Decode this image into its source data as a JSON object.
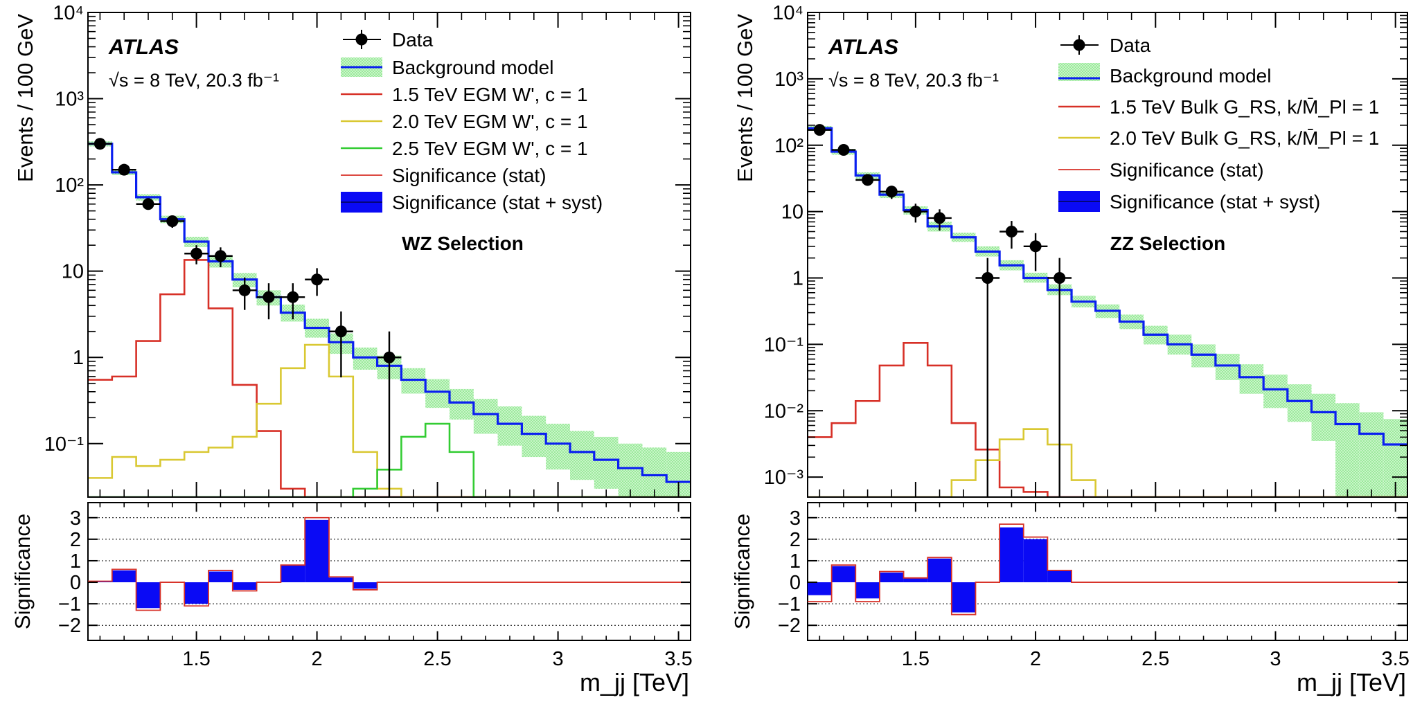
{
  "chart_data": [
    {
      "type": "line",
      "experiment": "ATLAS",
      "energy_label": "√s = 8 TeV, 20.3 fb⁻¹",
      "selection": "WZ Selection",
      "xlabel": "m_jj [TeV]",
      "ylabel": "Events / 100 GeV",
      "ratio_ylabel": "Significance",
      "xlim": [
        1.05,
        3.55
      ],
      "ylim": [
        0.024,
        10000
      ],
      "yscale": "log",
      "ratio_ylim": [
        -2.7,
        3.7
      ],
      "xticks": [
        1.5,
        2,
        2.5,
        3,
        3.5
      ],
      "xtick_labels": [
        "1.5",
        "2",
        "2.5",
        "3",
        "3.5"
      ],
      "ytick_labels": [
        "10⁴",
        "10³",
        "10²",
        "10",
        "1",
        "10⁻¹"
      ],
      "ratio_ytick_labels": [
        "3",
        "2",
        "1",
        "0",
        "−1",
        "−2"
      ],
      "bins": [
        1.05,
        1.15,
        1.25,
        1.35,
        1.45,
        1.55,
        1.65,
        1.75,
        1.85,
        1.95,
        2.05,
        2.15,
        2.25,
        2.35,
        2.45,
        2.55,
        2.65,
        2.75,
        2.85,
        2.95,
        3.05,
        3.15,
        3.25,
        3.35,
        3.45,
        3.55
      ],
      "legend": {
        "data": "Data",
        "background": "Background model",
        "signals": [
          "1.5 TeV EGM W', c = 1",
          "2.0 TeV EGM W', c = 1",
          "2.5 TeV EGM W', c = 1"
        ],
        "sig_stat": "Significance (stat)",
        "sig_syst": "Significance (stat + syst)"
      },
      "data_points": {
        "x": [
          1.1,
          1.2,
          1.3,
          1.4,
          1.5,
          1.6,
          1.7,
          1.8,
          1.9,
          2.0,
          2.1,
          2.3
        ],
        "y": [
          300,
          150,
          60,
          38,
          16,
          15,
          6,
          5,
          5,
          8,
          2,
          1
        ]
      },
      "background": {
        "values": [
          300,
          140,
          72,
          40,
          22,
          13,
          8,
          5,
          3.3,
          2.2,
          1.5,
          1.0,
          0.8,
          0.55,
          0.4,
          0.3,
          0.22,
          0.17,
          0.13,
          0.1,
          0.08,
          0.065,
          0.052,
          0.043,
          0.036
        ],
        "band_low": [
          280,
          130,
          66,
          36,
          19,
          11,
          6.5,
          4,
          2.6,
          1.7,
          1.1,
          0.72,
          0.56,
          0.38,
          0.26,
          0.19,
          0.13,
          0.095,
          0.07,
          0.05,
          0.038,
          0.03,
          0.024,
          0.024,
          0.024
        ],
        "band_high": [
          320,
          150,
          78,
          44,
          25,
          15,
          9.5,
          6,
          4.1,
          2.8,
          1.9,
          1.3,
          1.05,
          0.75,
          0.56,
          0.43,
          0.33,
          0.27,
          0.21,
          0.17,
          0.14,
          0.12,
          0.1,
          0.09,
          0.08
        ]
      },
      "signals": [
        {
          "name": "1.5 TeV EGM W', c = 1",
          "color": "#d73027",
          "values": [
            0.55,
            0.6,
            1.55,
            5.4,
            13.5,
            3.7,
            0.48,
            0.14,
            0.03,
            0.02,
            0.02,
            0.02,
            0.02,
            0.02,
            0.02,
            0.02,
            0.02,
            0.02,
            0.02,
            0.02,
            0.02,
            0.02,
            0.02,
            0.02,
            0.02
          ]
        },
        {
          "name": "2.0 TeV EGM W', c = 1",
          "color": "#d9c832",
          "values": [
            0.04,
            0.07,
            0.055,
            0.065,
            0.08,
            0.09,
            0.12,
            0.29,
            0.75,
            1.4,
            0.6,
            0.08,
            0.03,
            0.02,
            0.02,
            0.02,
            0.02,
            0.02,
            0.02,
            0.02,
            0.02,
            0.02,
            0.02,
            0.02,
            0.02
          ]
        },
        {
          "name": "2.5 TeV EGM W', c = 1",
          "color": "#33cc33",
          "values": [
            0.02,
            0.02,
            0.02,
            0.02,
            0.02,
            0.02,
            0.02,
            0.02,
            0.02,
            0.02,
            0.02,
            0.03,
            0.05,
            0.12,
            0.17,
            0.08,
            0.02,
            0.02,
            0.02,
            0.02,
            0.02,
            0.02,
            0.02,
            0.02,
            0.02
          ]
        }
      ],
      "significance_stat": [
        0.05,
        0.6,
        -1.3,
        0,
        -1.1,
        0.55,
        -0.4,
        0,
        0.8,
        3.0,
        0.25,
        -0.35,
        0,
        0,
        0,
        0,
        0,
        0,
        0,
        0,
        0,
        0,
        0,
        0,
        0
      ],
      "significance_syst": [
        0.05,
        0.55,
        -1.2,
        0,
        -1.0,
        0.5,
        -0.35,
        0,
        0.78,
        2.9,
        0.22,
        -0.3,
        0,
        0,
        0,
        0,
        0,
        0,
        0,
        0,
        0,
        0,
        0,
        0,
        0
      ]
    },
    {
      "type": "line",
      "experiment": "ATLAS",
      "energy_label": "√s = 8 TeV, 20.3 fb⁻¹",
      "selection": "ZZ Selection",
      "xlabel": "m_jj [TeV]",
      "ylabel": "Events / 100 GeV",
      "ratio_ylabel": "Significance",
      "xlim": [
        1.05,
        3.55
      ],
      "ylim": [
        0.0005,
        10000
      ],
      "yscale": "log",
      "ratio_ylim": [
        -2.7,
        3.7
      ],
      "xticks": [
        1.5,
        2,
        2.5,
        3,
        3.5
      ],
      "xtick_labels": [
        "1.5",
        "2",
        "2.5",
        "3",
        "3.5"
      ],
      "ytick_labels": [
        "10⁴",
        "10³",
        "10²",
        "10",
        "1",
        "10⁻¹",
        "10⁻²",
        "10⁻³"
      ],
      "ratio_ytick_labels": [
        "3",
        "2",
        "1",
        "0",
        "−1",
        "−2"
      ],
      "bins": [
        1.05,
        1.15,
        1.25,
        1.35,
        1.45,
        1.55,
        1.65,
        1.75,
        1.85,
        1.95,
        2.05,
        2.15,
        2.25,
        2.35,
        2.45,
        2.55,
        2.65,
        2.75,
        2.85,
        2.95,
        3.05,
        3.15,
        3.25,
        3.35,
        3.45,
        3.55
      ],
      "legend": {
        "data": "Data",
        "background": "Background model",
        "signals": [
          "1.5 TeV Bulk G_RS, k/M̄_Pl = 1",
          "2.0 TeV Bulk G_RS, k/M̄_Pl = 1"
        ],
        "sig_stat": "Significance (stat)",
        "sig_syst": "Significance (stat + syst)"
      },
      "data_points": {
        "x": [
          1.1,
          1.2,
          1.3,
          1.4,
          1.5,
          1.6,
          1.8,
          1.9,
          2.0,
          2.1
        ],
        "y": [
          170,
          85,
          30,
          20,
          10,
          8,
          1,
          5,
          3,
          1
        ]
      },
      "background": {
        "values": [
          180,
          80,
          35,
          18,
          10.5,
          6,
          4.1,
          2.5,
          1.55,
          1.0,
          0.66,
          0.44,
          0.32,
          0.22,
          0.14,
          0.1,
          0.07,
          0.048,
          0.032,
          0.021,
          0.014,
          0.0095,
          0.0063,
          0.0045,
          0.0031
        ],
        "band_low": [
          165,
          72,
          31,
          16,
          9,
          5,
          3.5,
          2.1,
          1.3,
          0.85,
          0.55,
          0.36,
          0.25,
          0.17,
          0.1,
          0.07,
          0.045,
          0.029,
          0.018,
          0.011,
          0.0068,
          0.0035,
          0.0005,
          0.0005,
          0.0005
        ],
        "band_high": [
          195,
          88,
          39,
          20,
          12,
          7,
          4.8,
          3,
          1.85,
          1.2,
          0.8,
          0.54,
          0.4,
          0.28,
          0.19,
          0.14,
          0.1,
          0.072,
          0.05,
          0.035,
          0.025,
          0.018,
          0.013,
          0.0095,
          0.0075
        ]
      },
      "signals": [
        {
          "name": "1.5 TeV Bulk G_RS, k/M̄_Pl = 1",
          "color": "#d73027",
          "values": [
            0.004,
            0.0065,
            0.014,
            0.048,
            0.105,
            0.048,
            0.0065,
            0.0026,
            0.0007,
            0.0006,
            0.0005,
            0.0005,
            0.0005,
            0.0005,
            0.0005,
            0.0005,
            0.0005,
            0.0005,
            0.0005,
            0.0005,
            0.0005,
            0.0005,
            0.0005,
            0.0005,
            0.0005
          ]
        },
        {
          "name": "2.0 TeV Bulk G_RS, k/M̄_Pl = 1",
          "color": "#d9c832",
          "values": [
            0.0005,
            0.0005,
            0.0005,
            0.0005,
            0.0005,
            0.0005,
            0.0009,
            0.0018,
            0.0037,
            0.0053,
            0.0031,
            0.0009,
            0.0005,
            0.0005,
            0.0005,
            0.0005,
            0.0005,
            0.0005,
            0.0005,
            0.0005,
            0.0005,
            0.0005,
            0.0005,
            0.0005,
            0.0005
          ]
        }
      ],
      "significance_stat": [
        -0.9,
        0.8,
        -0.9,
        0.5,
        0.2,
        1.15,
        -1.5,
        0,
        2.7,
        2.1,
        0.55,
        0,
        0,
        0,
        0,
        0,
        0,
        0,
        0,
        0,
        0,
        0,
        0,
        0,
        0
      ],
      "significance_syst": [
        -0.6,
        0.75,
        -0.75,
        0.45,
        0.18,
        1.1,
        -1.4,
        0,
        2.55,
        2.0,
        0.55,
        0,
        0,
        0,
        0,
        0,
        0,
        0,
        0,
        0,
        0,
        0,
        0,
        0,
        0
      ]
    }
  ]
}
